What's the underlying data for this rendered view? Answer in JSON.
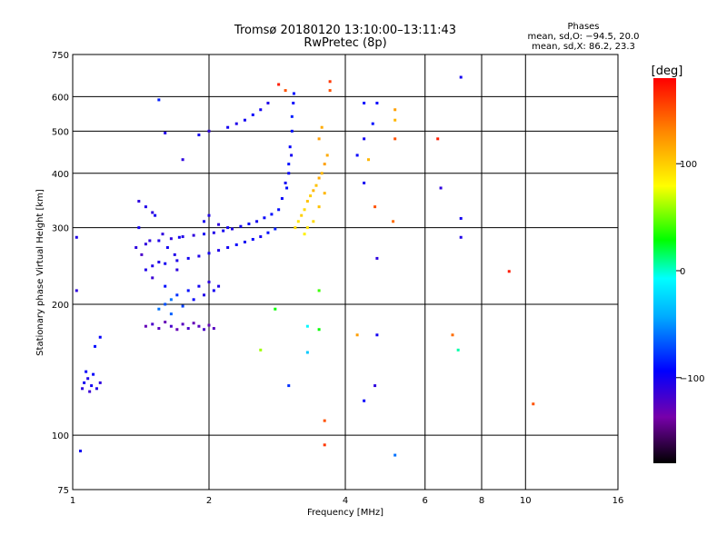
{
  "title": "Tromsø 20180120 13:10:00–13:11:43",
  "subtitle": "RwPretec (8p)",
  "stats": {
    "heading": "Phases",
    "line_o": "mean, sd,O: −94.5, 20.0",
    "line_x": "mean, sd,X:  86.2, 23.3"
  },
  "chart_data": {
    "type": "scatter",
    "title": "Tromsø 20180120 13:10:00–13:11:43",
    "subtitle": "RwPretec (8p)",
    "xlabel": "Frequency [MHz]",
    "ylabel": "Stationary phase Virtual Height [km]",
    "xscale": "log",
    "yscale": "log",
    "xlim": [
      1,
      16
    ],
    "ylim": [
      75,
      750
    ],
    "x_ticks": [
      1,
      2,
      4,
      6,
      8,
      10,
      16
    ],
    "x_tick_labels": [
      "1",
      "2",
      "4",
      "6",
      "8",
      "10",
      "16"
    ],
    "y_ticks": [
      75,
      100,
      200,
      300,
      400,
      500,
      600,
      750
    ],
    "y_tick_labels": [
      "75",
      "100",
      "200",
      "300",
      "400",
      "500",
      "600",
      "750"
    ],
    "grid": true,
    "colorbar": {
      "label": "[deg]",
      "range": [
        -180,
        180
      ],
      "ticks": [
        100,
        0,
        -100
      ],
      "tick_labels": [
        "100",
        "0",
        "−100"
      ],
      "colors": [
        "#000000",
        "#7700aa",
        "#0000ff",
        "#00aaff",
        "#00ffff",
        "#00ff00",
        "#ffff00",
        "#ff8800",
        "#ff0000"
      ]
    },
    "points": [
      [
        1.02,
        285,
        -105
      ],
      [
        1.02,
        215,
        -110
      ],
      [
        1.04,
        92,
        -100
      ],
      [
        1.05,
        128,
        -110
      ],
      [
        1.06,
        132,
        -100
      ],
      [
        1.07,
        140,
        -95
      ],
      [
        1.08,
        135,
        -105
      ],
      [
        1.09,
        126,
        -115
      ],
      [
        1.1,
        130,
        -100
      ],
      [
        1.11,
        138,
        -95
      ],
      [
        1.13,
        128,
        -105
      ],
      [
        1.15,
        132,
        -110
      ],
      [
        1.12,
        160,
        -90
      ],
      [
        1.15,
        168,
        -95
      ],
      [
        1.38,
        270,
        -110
      ],
      [
        1.4,
        300,
        -100
      ],
      [
        1.42,
        260,
        -120
      ],
      [
        1.45,
        240,
        -105
      ],
      [
        1.48,
        280,
        -110
      ],
      [
        1.5,
        230,
        -115
      ],
      [
        1.52,
        320,
        -100
      ],
      [
        1.55,
        250,
        -105
      ],
      [
        1.58,
        290,
        -110
      ],
      [
        1.6,
        220,
        -90
      ],
      [
        1.62,
        270,
        -100
      ],
      [
        1.65,
        205,
        -60
      ],
      [
        1.68,
        260,
        -105
      ],
      [
        1.7,
        240,
        -110
      ],
      [
        1.72,
        285,
        -100
      ],
      [
        1.45,
        178,
        -130
      ],
      [
        1.5,
        180,
        -120
      ],
      [
        1.55,
        176,
        -125
      ],
      [
        1.6,
        182,
        -130
      ],
      [
        1.65,
        178,
        -120
      ],
      [
        1.7,
        175,
        -130
      ],
      [
        1.75,
        180,
        -125
      ],
      [
        1.8,
        176,
        -120
      ],
      [
        1.85,
        181,
        -130
      ],
      [
        1.9,
        178,
        -125
      ],
      [
        1.95,
        175,
        -120
      ],
      [
        2.0,
        179,
        -130
      ],
      [
        2.05,
        176,
        -125
      ],
      [
        1.55,
        195,
        -60
      ],
      [
        1.6,
        200,
        -70
      ],
      [
        1.65,
        190,
        -65
      ],
      [
        1.7,
        210,
        -80
      ],
      [
        1.75,
        198,
        -75
      ],
      [
        1.8,
        215,
        -90
      ],
      [
        1.85,
        205,
        -95
      ],
      [
        1.9,
        220,
        -100
      ],
      [
        1.95,
        210,
        -105
      ],
      [
        2.0,
        225,
        -110
      ],
      [
        2.05,
        215,
        -100
      ],
      [
        2.1,
        220,
        -105
      ],
      [
        1.5,
        245,
        -105
      ],
      [
        1.6,
        248,
        -100
      ],
      [
        1.7,
        252,
        -105
      ],
      [
        1.8,
        255,
        -100
      ],
      [
        1.9,
        258,
        -105
      ],
      [
        2.0,
        262,
        -100
      ],
      [
        2.1,
        266,
        -105
      ],
      [
        2.2,
        270,
        -100
      ],
      [
        2.3,
        274,
        -95
      ],
      [
        2.4,
        278,
        -100
      ],
      [
        2.5,
        282,
        -95
      ],
      [
        2.6,
        286,
        -100
      ],
      [
        2.7,
        292,
        -90
      ],
      [
        2.8,
        298,
        -85
      ],
      [
        1.45,
        275,
        -110
      ],
      [
        1.55,
        280,
        -105
      ],
      [
        1.65,
        283,
        -110
      ],
      [
        1.75,
        286,
        -105
      ],
      [
        1.85,
        288,
        -110
      ],
      [
        1.95,
        290,
        -100
      ],
      [
        2.05,
        292,
        -105
      ],
      [
        2.15,
        295,
        -100
      ],
      [
        2.25,
        298,
        -105
      ],
      [
        2.35,
        302,
        -100
      ],
      [
        2.45,
        306,
        -95
      ],
      [
        2.55,
        310,
        -100
      ],
      [
        2.65,
        316,
        -95
      ],
      [
        2.75,
        322,
        -90
      ],
      [
        2.85,
        330,
        -90
      ],
      [
        1.4,
        345,
        -110
      ],
      [
        1.45,
        335,
        -105
      ],
      [
        1.5,
        325,
        -110
      ],
      [
        1.95,
        310,
        -100
      ],
      [
        2.0,
        320,
        -105
      ],
      [
        2.1,
        305,
        -110
      ],
      [
        2.2,
        300,
        -100
      ],
      [
        2.9,
        350,
        -95
      ],
      [
        2.95,
        380,
        -100
      ],
      [
        3.0,
        420,
        -90
      ],
      [
        3.02,
        460,
        -95
      ],
      [
        3.05,
        500,
        -90
      ],
      [
        3.05,
        540,
        -85
      ],
      [
        3.07,
        580,
        -95
      ],
      [
        3.08,
        610,
        -90
      ],
      [
        3.04,
        440,
        -100
      ],
      [
        3.0,
        400,
        -95
      ],
      [
        2.97,
        370,
        -90
      ],
      [
        2.6,
        560,
        -100
      ],
      [
        2.7,
        580,
        -105
      ],
      [
        2.5,
        545,
        -95
      ],
      [
        2.4,
        530,
        -100
      ],
      [
        2.3,
        520,
        -105
      ],
      [
        2.2,
        510,
        -100
      ],
      [
        2.0,
        500,
        -110
      ],
      [
        1.9,
        490,
        -100
      ],
      [
        1.75,
        430,
        -110
      ],
      [
        1.6,
        495,
        -105
      ],
      [
        1.55,
        590,
        -85
      ],
      [
        3.1,
        300,
        95
      ],
      [
        3.15,
        310,
        90
      ],
      [
        3.2,
        320,
        100
      ],
      [
        3.25,
        330,
        95
      ],
      [
        3.3,
        345,
        105
      ],
      [
        3.35,
        355,
        100
      ],
      [
        3.4,
        365,
        110
      ],
      [
        3.45,
        375,
        105
      ],
      [
        3.5,
        390,
        115
      ],
      [
        3.55,
        400,
        110
      ],
      [
        3.6,
        420,
        120
      ],
      [
        3.65,
        440,
        115
      ],
      [
        3.3,
        300,
        90
      ],
      [
        3.4,
        310,
        95
      ],
      [
        3.5,
        335,
        105
      ],
      [
        3.25,
        290,
        85
      ],
      [
        3.6,
        360,
        110
      ],
      [
        3.5,
        480,
        120
      ],
      [
        3.55,
        510,
        115
      ],
      [
        3.7,
        620,
        150
      ],
      [
        3.7,
        650,
        160
      ],
      [
        2.85,
        640,
        170
      ],
      [
        2.95,
        620,
        150
      ],
      [
        4.4,
        580,
        -90
      ],
      [
        4.7,
        580,
        -95
      ],
      [
        4.6,
        520,
        -90
      ],
      [
        4.4,
        480,
        -100
      ],
      [
        4.25,
        440,
        -95
      ],
      [
        4.5,
        430,
        110
      ],
      [
        4.65,
        335,
        150
      ],
      [
        4.4,
        380,
        -100
      ],
      [
        4.7,
        255,
        -110
      ],
      [
        4.7,
        170,
        -100
      ],
      [
        4.4,
        120,
        -95
      ],
      [
        4.65,
        130,
        -110
      ],
      [
        4.25,
        170,
        120
      ],
      [
        5.15,
        560,
        120
      ],
      [
        5.15,
        530,
        110
      ],
      [
        5.15,
        480,
        150
      ],
      [
        5.1,
        310,
        140
      ],
      [
        5.15,
        90,
        -60
      ],
      [
        3.6,
        108,
        150
      ],
      [
        3.6,
        95,
        160
      ],
      [
        3.5,
        215,
        40
      ],
      [
        3.5,
        175,
        30
      ],
      [
        3.3,
        178,
        -10
      ],
      [
        3.3,
        155,
        -30
      ],
      [
        3.0,
        130,
        -80
      ],
      [
        2.8,
        195,
        30
      ],
      [
        2.6,
        157,
        60
      ],
      [
        6.4,
        480,
        170
      ],
      [
        6.5,
        370,
        -110
      ],
      [
        6.9,
        170,
        140
      ],
      [
        7.2,
        665,
        -100
      ],
      [
        7.2,
        315,
        -100
      ],
      [
        7.2,
        285,
        -105
      ],
      [
        7.1,
        157,
        5
      ],
      [
        9.2,
        238,
        170
      ],
      [
        10.4,
        118,
        150
      ]
    ]
  }
}
